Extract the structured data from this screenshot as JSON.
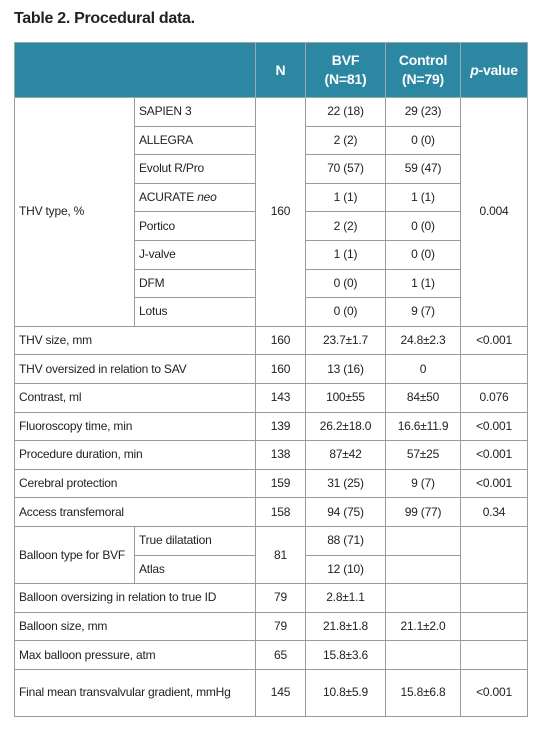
{
  "title": "Table 2. Procedural data.",
  "header": {
    "n": "N",
    "bvf": {
      "name": "BVF",
      "sub": "(N=81)"
    },
    "control": {
      "name": "Control",
      "sub": "(N=79)"
    },
    "p": {
      "italic": "p",
      "rest": "-value"
    }
  },
  "rows": [
    {
      "label": "THV type, %",
      "n": "160",
      "p": "0.004",
      "items": [
        {
          "name": "SAPIEN 3",
          "bvf": "22 (18)",
          "control": "29 (23)"
        },
        {
          "name": "ALLEGRA",
          "bvf": "2 (2)",
          "control": "0 (0)"
        },
        {
          "name": "Evolut R/Pro",
          "bvf": "70 (57)",
          "control": "59 (47)"
        },
        {
          "name": "ACURATE ",
          "name_italic": "neo",
          "bvf": "1 (1)",
          "control": "1 (1)"
        },
        {
          "name": "Portico",
          "bvf": "2 (2)",
          "control": "0 (0)"
        },
        {
          "name": "J-valve",
          "bvf": "1 (1)",
          "control": "0 (0)"
        },
        {
          "name": "DFM",
          "bvf": "0 (0)",
          "control": "1 (1)"
        },
        {
          "name": "Lotus",
          "bvf": "0 (0)",
          "control": "9 (7)"
        }
      ]
    },
    {
      "label": "THV size, mm",
      "n": "160",
      "bvf": "23.7±1.7",
      "control": "24.8±2.3",
      "p": "<0.001"
    },
    {
      "label": "THV oversized in relation to SAV",
      "n": "160",
      "bvf": "13 (16)",
      "control": "0"
    },
    {
      "label": "Contrast, ml",
      "n": "143",
      "bvf": "100±55",
      "control": "84±50",
      "p": "0.076"
    },
    {
      "label": "Fluoroscopy time, min",
      "n": "139",
      "bvf": "26.2±18.0",
      "control": "16.6±11.9",
      "p": "<0.001"
    },
    {
      "label": "Procedure duration, min",
      "n": "138",
      "bvf": "87±42",
      "control": "57±25",
      "p": "<0.001"
    },
    {
      "label": "Cerebral protection",
      "n": "159",
      "bvf": "31 (25)",
      "control": "9 (7)",
      "p": "<0.001"
    },
    {
      "label": "Access transfemoral",
      "n": "158",
      "bvf": "94 (75)",
      "control": "99 (77)",
      "p": "0.34"
    },
    {
      "label": "Balloon type for BVF",
      "n": "81",
      "items": [
        {
          "name": "True dilatation",
          "bvf": "88 (71)"
        },
        {
          "name": "Atlas",
          "bvf": "12 (10)"
        }
      ]
    },
    {
      "label": "Balloon oversizing in relation to true ID",
      "n": "79",
      "bvf": "2.8±1.1"
    },
    {
      "label": "Balloon size, mm",
      "n": "79",
      "bvf": "21.8±1.8",
      "control": "21.1±2.0"
    },
    {
      "label": "Max balloon pressure, atm",
      "n": "65",
      "bvf": "15.8±3.6"
    },
    {
      "label": "Final mean transvalvular gradient, mmHg",
      "n": "145",
      "bvf": "10.8±5.9",
      "control": "15.8±6.8",
      "p": "<0.001"
    }
  ]
}
